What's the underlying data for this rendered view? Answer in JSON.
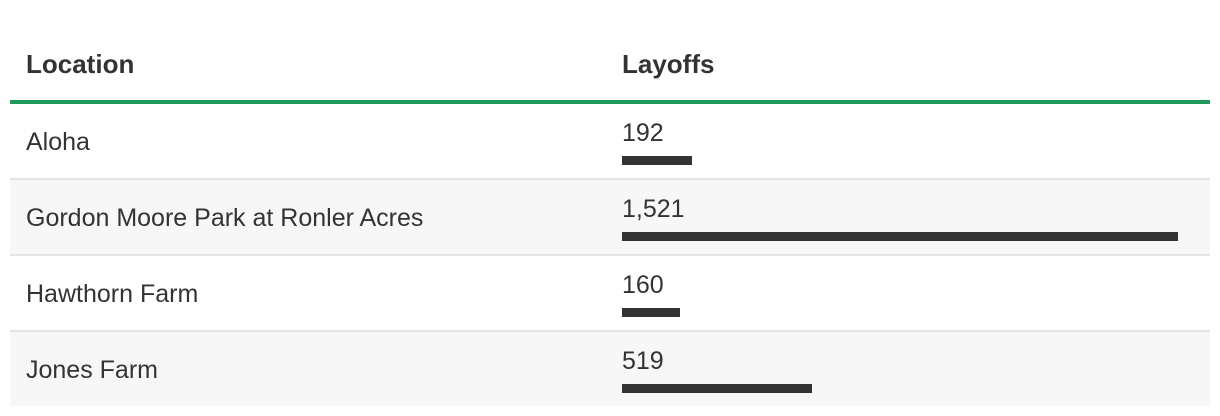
{
  "chart_data": {
    "type": "bar",
    "orientation": "horizontal",
    "columns": [
      "Location",
      "Layoffs"
    ],
    "categories": [
      "Aloha",
      "Gordon Moore Park at Ronler Acres",
      "Hawthorn Farm",
      "Jones Farm"
    ],
    "values": [
      192,
      1521,
      160,
      519
    ],
    "value_labels": [
      "192",
      "1,521",
      "160",
      "519"
    ],
    "xlim": [
      0,
      1521
    ],
    "grid": false,
    "colors": {
      "bar": "#333333",
      "header_rule": "#1f9a5a",
      "alt_row": "#f7f7f7"
    }
  }
}
